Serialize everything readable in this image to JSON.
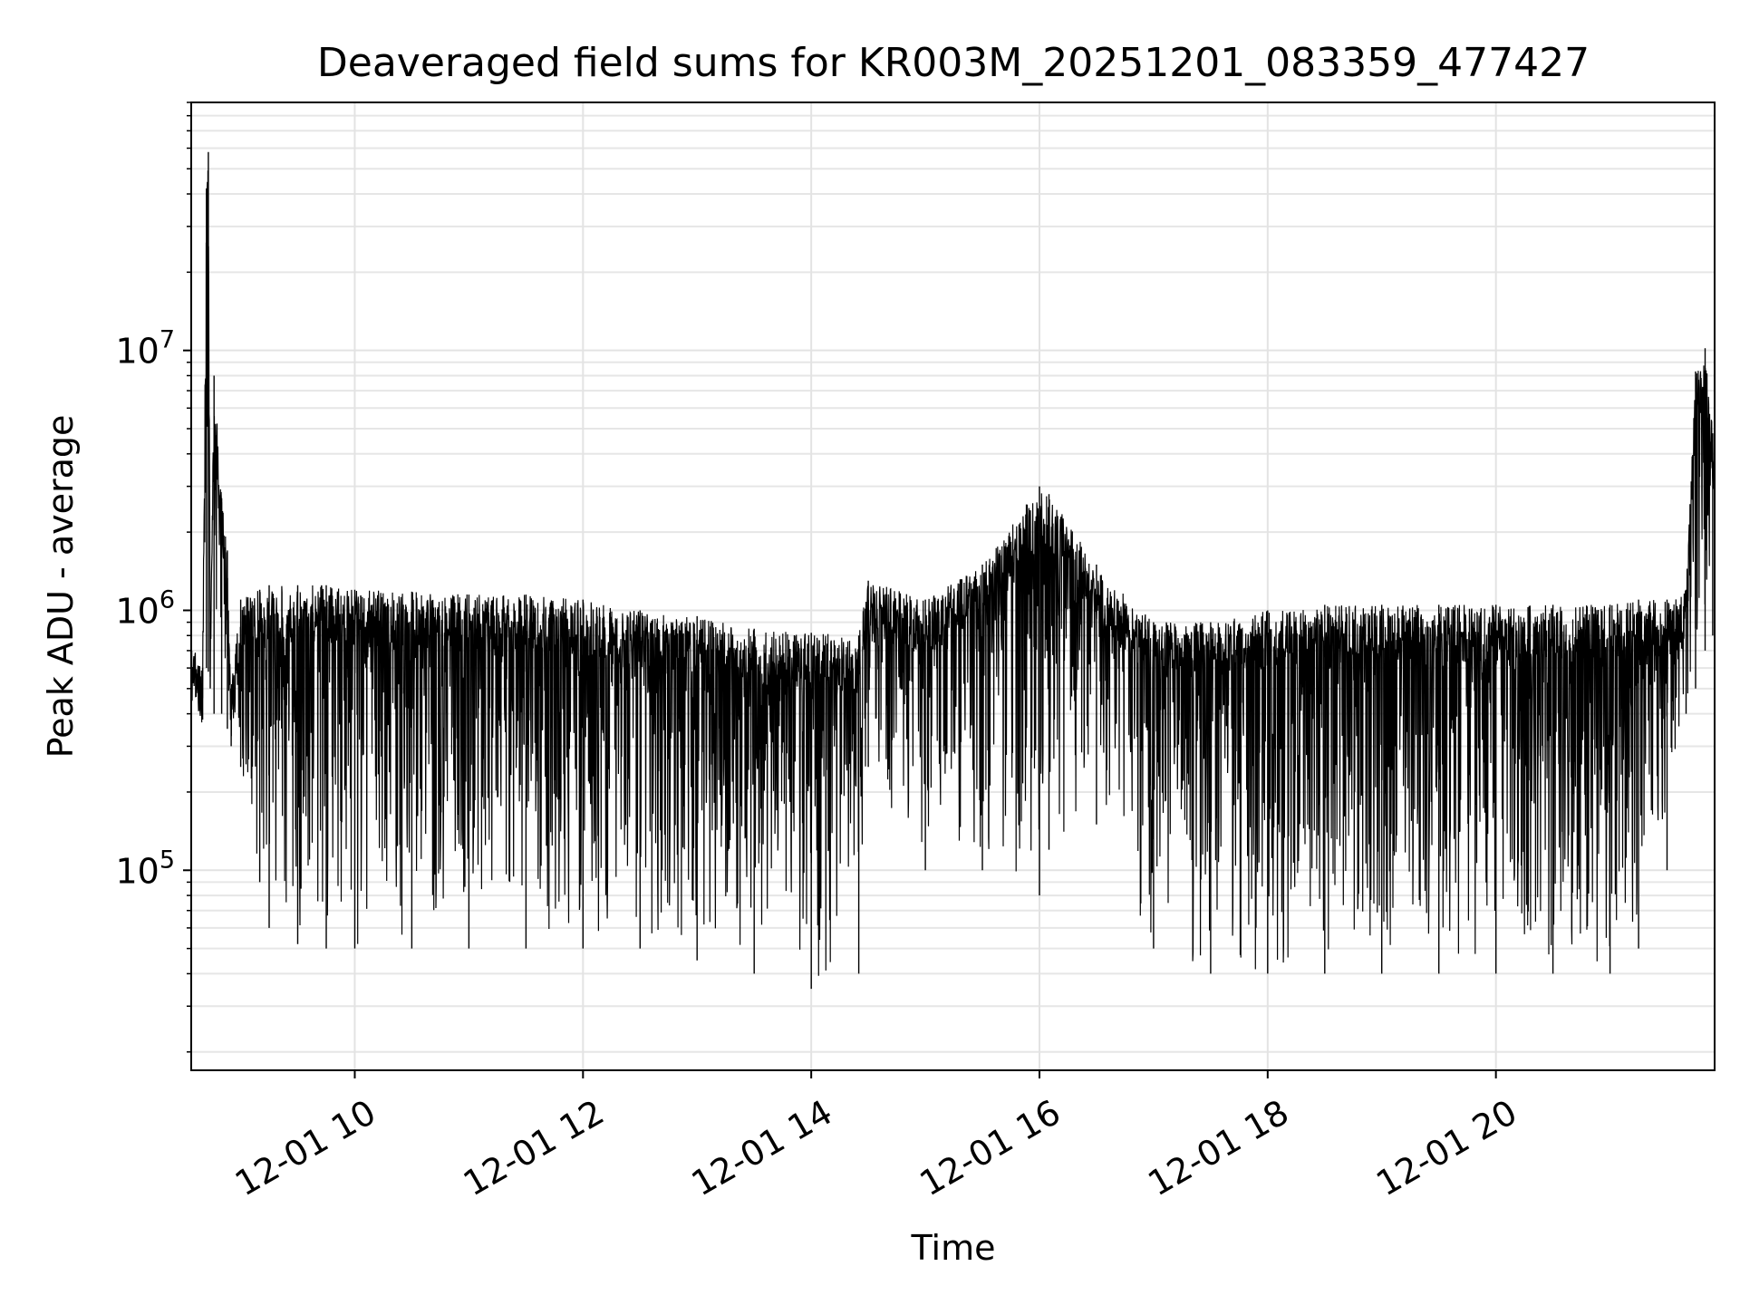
{
  "chart_data": {
    "type": "line",
    "title": "Deaveraged field sums for KR003M_20251201_083359_477427",
    "xlabel": "Time",
    "ylabel": "Peak ADU - average",
    "x_range": [
      "2025-12-01 08:34",
      "2025-12-01 21:55"
    ],
    "y_range": [
      17000,
      90000000
    ],
    "y_scale": "log",
    "grid": "major and minor, light gray",
    "x_ticks": [
      {
        "label": "12-01 10",
        "value": "2025-12-01 10:00"
      },
      {
        "label": "12-01 12",
        "value": "2025-12-01 12:00"
      },
      {
        "label": "12-01 14",
        "value": "2025-12-01 14:00"
      },
      {
        "label": "12-01 16",
        "value": "2025-12-01 16:00"
      },
      {
        "label": "12-01 18",
        "value": "2025-12-01 18:00"
      },
      {
        "label": "12-01 20",
        "value": "2025-12-01 20:00"
      }
    ],
    "y_ticks": [
      {
        "label": "10",
        "exponent": "5",
        "value": 100000
      },
      {
        "label": "10",
        "exponent": "6",
        "value": 1000000
      },
      {
        "label": "10",
        "exponent": "7",
        "value": 10000000
      }
    ],
    "line_color": "#000000",
    "series": [
      {
        "x": [
          "2025-12-01 08:34",
          "2025-12-01 08:40",
          "2025-12-01 08:42",
          "2025-12-01 08:43",
          "2025-12-01 08:44",
          "2025-12-01 08:46",
          "2025-12-01 08:50",
          "2025-12-01 08:53",
          "2025-12-01 08:55",
          "2025-12-01 09:00",
          "2025-12-01 09:10",
          "2025-12-01 09:15",
          "2025-12-01 09:30",
          "2025-12-01 09:45",
          "2025-12-01 10:00",
          "2025-12-01 10:30",
          "2025-12-01 11:00",
          "2025-12-01 11:30",
          "2025-12-01 12:00",
          "2025-12-01 12:30",
          "2025-12-01 13:00",
          "2025-12-01 13:30",
          "2025-12-01 14:00",
          "2025-12-01 14:25",
          "2025-12-01 14:30",
          "2025-12-01 15:00",
          "2025-12-01 15:30",
          "2025-12-01 16:00",
          "2025-12-01 16:05",
          "2025-12-01 16:30",
          "2025-12-01 17:00",
          "2025-12-01 17:30",
          "2025-12-01 18:00",
          "2025-12-01 18:30",
          "2025-12-01 19:00",
          "2025-12-01 19:30",
          "2025-12-01 20:00",
          "2025-12-01 20:30",
          "2025-12-01 21:00",
          "2025-12-01 21:15",
          "2025-12-01 21:30",
          "2025-12-01 21:40",
          "2025-12-01 21:45",
          "2025-12-01 21:50",
          "2025-12-01 21:54"
        ],
        "y_upper": [
          750000,
          600000,
          42000000,
          58000000,
          900000,
          8000000,
          2700000,
          1700000,
          500000,
          1100000,
          1200000,
          1250000,
          1250000,
          1250000,
          1200000,
          1180000,
          1150000,
          1150000,
          1100000,
          1000000,
          950000,
          850000,
          820000,
          800000,
          1300000,
          1100000,
          1500000,
          3000000,
          2800000,
          1500000,
          900000,
          900000,
          1000000,
          1050000,
          1050000,
          1050000,
          1050000,
          1050000,
          1050000,
          1100000,
          1100000,
          1200000,
          8300000,
          10200000,
          4800000
        ],
        "y_lower": [
          600000,
          380000,
          600000,
          580000,
          500000,
          400000,
          400000,
          350000,
          300000,
          250000,
          90000,
          60000,
          52000,
          50000,
          50000,
          50000,
          50000,
          50000,
          50000,
          50000,
          45000,
          40000,
          35000,
          40000,
          250000,
          100000,
          100000,
          80000,
          120000,
          150000,
          50000,
          40000,
          40000,
          40000,
          40000,
          40000,
          40000,
          40000,
          40000,
          50000,
          100000,
          400000,
          500000,
          700000,
          800000
        ]
      }
    ]
  }
}
